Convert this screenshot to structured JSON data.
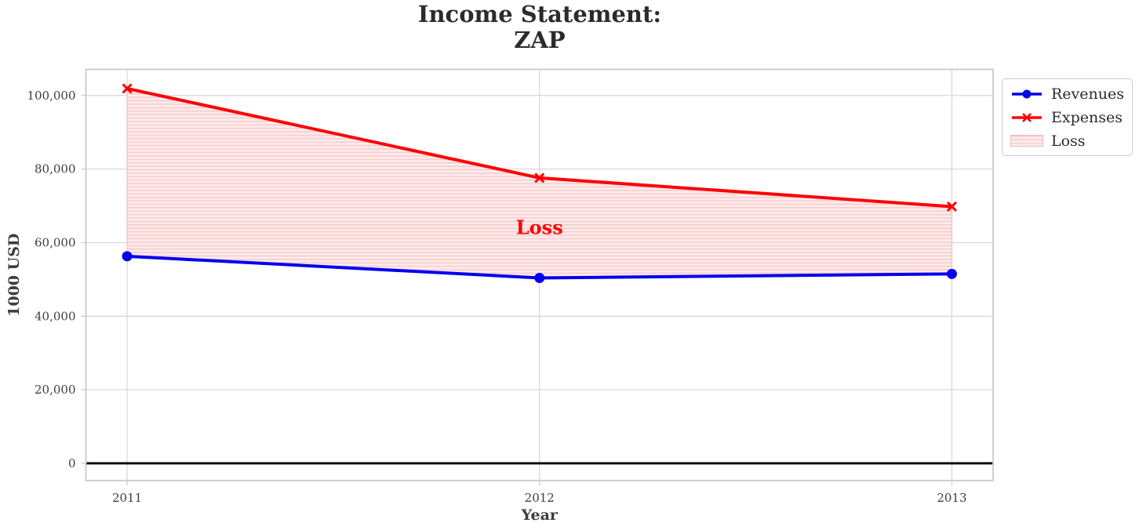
{
  "chart_data": {
    "type": "line",
    "title_lines": [
      "Income Statement:",
      "ZAP"
    ],
    "xlabel": "Year",
    "ylabel": "1000 USD",
    "x": [
      2011,
      2012,
      2013
    ],
    "xtick_labels": [
      "2011",
      "2012",
      "2013"
    ],
    "yticks": [
      0,
      20000,
      40000,
      60000,
      80000,
      100000
    ],
    "ytick_labels": [
      "0",
      "20,000",
      "40,000",
      "60,000",
      "80,000",
      "100,000"
    ],
    "xlim": [
      2010.9,
      2013.1
    ],
    "ylim": [
      -4700,
      107100
    ],
    "grid": true,
    "series": [
      {
        "name": "Revenues",
        "color": "#0000ee",
        "marker": "circle",
        "values": [
          56300,
          50400,
          51500
        ]
      },
      {
        "name": "Expenses",
        "color": "#ff0000",
        "marker": "x",
        "values": [
          101900,
          77600,
          69800
        ]
      }
    ],
    "fill_between": {
      "label": "Loss",
      "between": [
        "Expenses",
        "Revenues"
      ],
      "face_color": "#fdecec",
      "hatch_color": "#f8cdce",
      "hatch_style": "horizontal-lines",
      "edge_color": "#f5bcbc"
    },
    "annotation": {
      "text": "Loss",
      "x": 2012,
      "y": 64000,
      "color": "#ff0000"
    },
    "zero_line": {
      "value": 0,
      "color": "#000000"
    },
    "legend": {
      "position": "outside-upper-right",
      "entries": [
        "Revenues",
        "Expenses",
        "Loss"
      ]
    },
    "styles": {
      "grid_color": "#d9d9d9",
      "spine_color": "#cacaca",
      "tick_text_color": "#3d3d3d",
      "title_color": "#2b2b2b"
    }
  }
}
